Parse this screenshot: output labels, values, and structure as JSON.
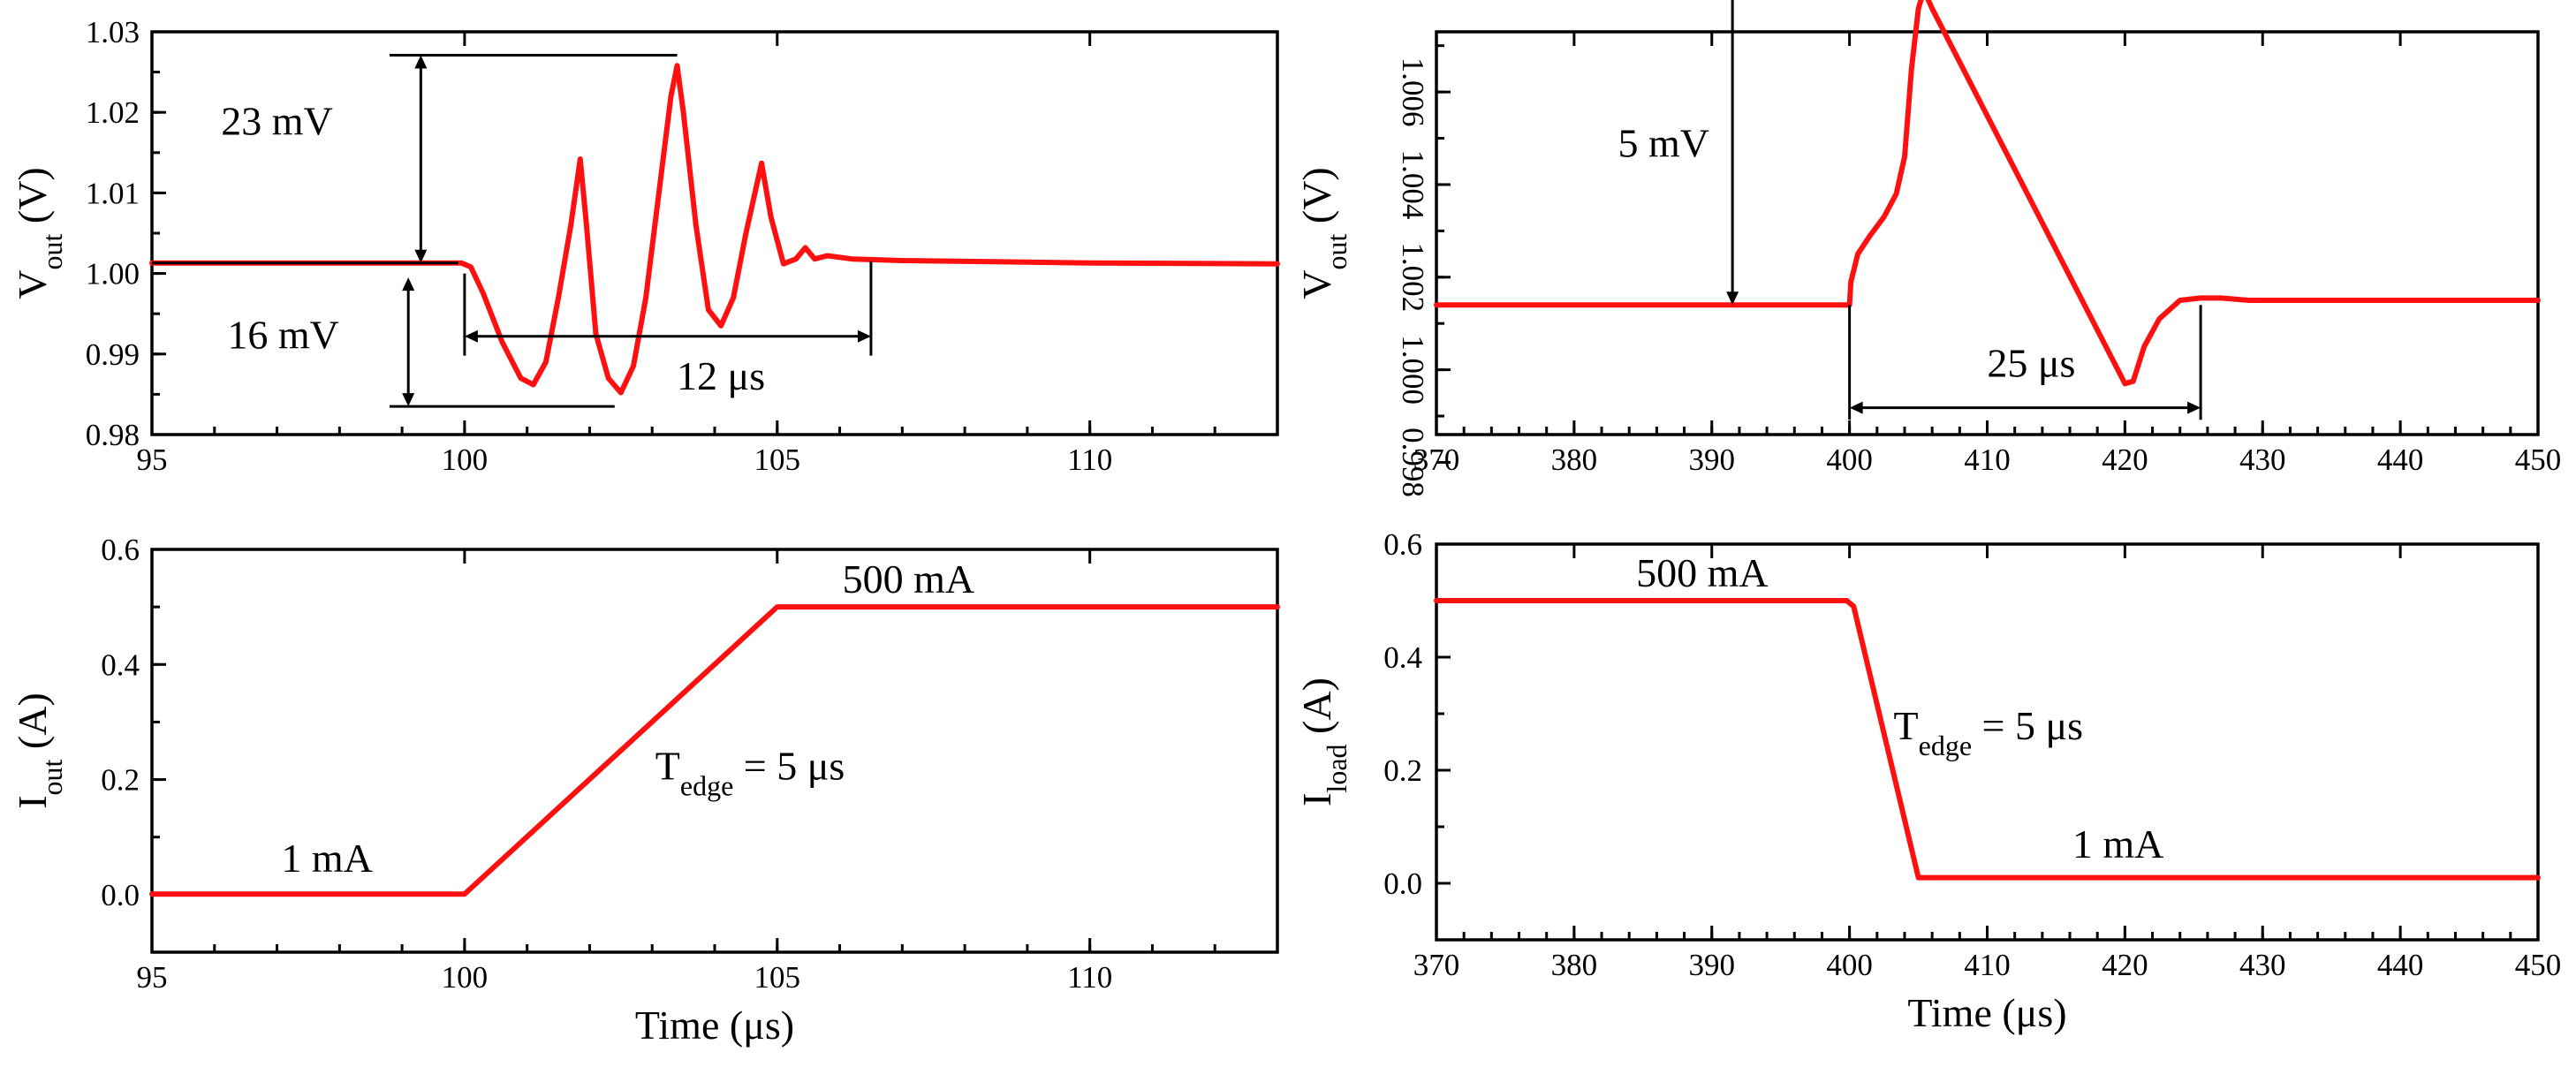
{
  "chart_data": [
    {
      "id": "p1",
      "type": "line",
      "ylabel": {
        "main": "V",
        "sub": "out",
        "unit": " (V)"
      },
      "xlabel": "",
      "xlim": [
        95,
        113
      ],
      "ylim": [
        0.98,
        1.03
      ],
      "xticks": [
        "95",
        "100",
        "105",
        "110"
      ],
      "xtick_values": [
        95,
        100,
        105,
        110
      ],
      "yticks": [
        "0.98",
        "0.99",
        "1.00",
        "1.01",
        "1.02",
        "1.03"
      ],
      "ytick_values": [
        0.98,
        0.99,
        1.0,
        1.01,
        1.02,
        1.03
      ],
      "series": [
        {
          "name": "Vout",
          "x": [
            95,
            99.95,
            100.1,
            100.3,
            100.6,
            100.9,
            101.1,
            101.3,
            101.5,
            101.7,
            101.85,
            101.95,
            102.1,
            102.3,
            102.5,
            102.7,
            102.9,
            103.1,
            103.3,
            103.4,
            103.5,
            103.7,
            103.9,
            104.1,
            104.3,
            104.5,
            104.75,
            104.9,
            105.1,
            105.3,
            105.45,
            105.6,
            105.8,
            106.2,
            107,
            110,
            113
          ],
          "y": [
            1.0013,
            1.0013,
            1.0008,
            0.9975,
            0.9915,
            0.987,
            0.9862,
            0.989,
            0.997,
            1.006,
            1.0142,
            1.006,
            0.9925,
            0.987,
            0.9852,
            0.9885,
            0.997,
            1.0095,
            1.022,
            1.0258,
            1.02,
            1.006,
            0.9955,
            0.9935,
            0.997,
            1.005,
            1.0137,
            1.007,
            1.0012,
            1.0018,
            1.0032,
            1.0018,
            1.0022,
            1.0018,
            1.0016,
            1.0013,
            1.0012
          ]
        }
      ],
      "annotations": [
        "23 mV",
        "16 mV",
        "12 μs"
      ]
    },
    {
      "id": "p2",
      "type": "line",
      "ylabel": {
        "main": "V",
        "sub": "out",
        "unit": " (V)"
      },
      "xlabel": "",
      "xlim": [
        370,
        450
      ],
      "ylim": [
        0.9986,
        1.0073
      ],
      "xticks": [
        "370",
        "380",
        "390",
        "400",
        "410",
        "420",
        "430",
        "440",
        "450"
      ],
      "xtick_values": [
        370,
        380,
        390,
        400,
        410,
        420,
        430,
        440,
        450
      ],
      "yticks": [
        "0.998",
        "1.000",
        "1.002",
        "1.004",
        "1.006"
      ],
      "ytick_values": [
        0.998,
        1.0,
        1.002,
        1.004,
        1.006
      ],
      "series": [
        {
          "name": "Vout",
          "x": [
            370,
            400,
            400.1,
            400.6,
            401.5,
            402.5,
            403.4,
            404,
            404.5,
            405,
            405.4,
            406,
            420,
            420.6,
            421.4,
            422.5,
            424,
            425.5,
            427,
            429,
            431,
            450
          ],
          "y": [
            1.0014,
            1.0014,
            1.0019,
            1.0025,
            1.0029,
            1.0033,
            1.0038,
            1.0046,
            1.0065,
            1.0078,
            1.0082,
            1.0078,
            0.9997,
            0.99975,
            1.0005,
            1.0011,
            1.0015,
            1.00155,
            1.00155,
            1.0015,
            1.0015,
            1.0015
          ]
        }
      ],
      "annotations": [
        "5 mV",
        "25 μs"
      ]
    },
    {
      "id": "p3",
      "type": "line",
      "ylabel": {
        "main": "I",
        "sub": "out",
        "unit": " (A)"
      },
      "xlabel": "Time (μs)",
      "xlim": [
        95,
        113
      ],
      "ylim": [
        -0.1,
        0.6
      ],
      "xticks": [
        "95",
        "100",
        "105",
        "110"
      ],
      "xtick_values": [
        95,
        100,
        105,
        110
      ],
      "yticks": [
        "0.0",
        "0.2",
        "0.4",
        "0.6"
      ],
      "ytick_values": [
        0.0,
        0.2,
        0.4,
        0.6
      ],
      "series": [
        {
          "name": "Iout",
          "x": [
            95,
            100,
            105,
            113
          ],
          "y": [
            0.001,
            0.001,
            0.5,
            0.5
          ]
        }
      ],
      "annotations": [
        "1 mA",
        "500 mA",
        "T",
        "edge",
        " = 5 μs"
      ]
    },
    {
      "id": "p4",
      "type": "line",
      "ylabel": {
        "main": "I",
        "sub": "load",
        "unit": " (A)"
      },
      "xlabel": "Time (μs)",
      "xlim": [
        370,
        450
      ],
      "ylim": [
        -0.1,
        0.6
      ],
      "xticks": [
        "370",
        "380",
        "390",
        "400",
        "410",
        "420",
        "430",
        "440",
        "450"
      ],
      "xtick_values": [
        370,
        380,
        390,
        400,
        410,
        420,
        430,
        440,
        450
      ],
      "yticks": [
        "0.0",
        "0.2",
        "0.4",
        "0.6"
      ],
      "ytick_values": [
        0.0,
        0.2,
        0.4,
        0.6
      ],
      "series": [
        {
          "name": "Iload",
          "x": [
            370,
            399.8,
            400.3,
            405,
            450
          ],
          "y": [
            0.5,
            0.5,
            0.49,
            0.01,
            0.01
          ]
        }
      ],
      "annotations": [
        "500 mA",
        "1 mA",
        "T",
        "edge",
        " = 5 μs"
      ]
    }
  ]
}
